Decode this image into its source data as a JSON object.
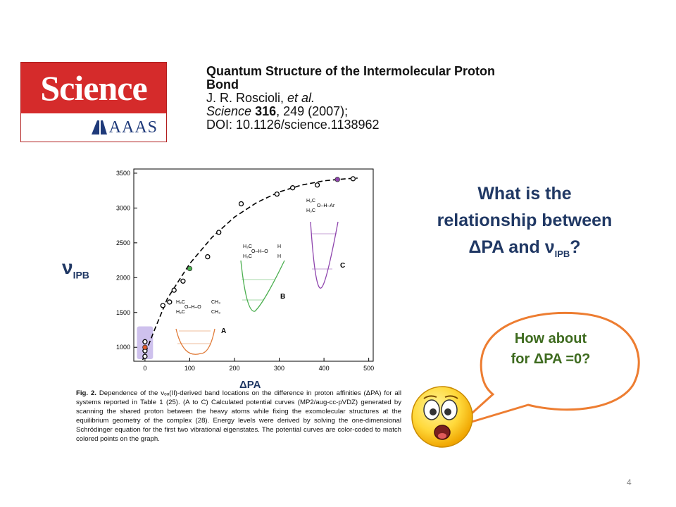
{
  "logo": {
    "wordmark": "Science",
    "publisher": "AAAS"
  },
  "citation": {
    "title": "Quantum Structure of the Intermolecular Proton Bond",
    "authors_prefix": "J. R. Roscioli, ",
    "authors_etal": "et al.",
    "journal": "Science",
    "volume": "316",
    "pages_year": ", 249 (2007);",
    "doi": "DOI: 10.1126/science.1138962"
  },
  "chart_data": {
    "type": "scatter",
    "x_ticks": [
      "0",
      "100",
      "200",
      "300",
      "400",
      "500"
    ],
    "y_ticks": [
      "1000",
      "1500",
      "2000",
      "2500",
      "3000",
      "3500"
    ],
    "xlim": [
      -25,
      510
    ],
    "ylim": [
      800,
      3560
    ],
    "points_open": [
      [
        0,
        950
      ],
      [
        0,
        870
      ],
      [
        0,
        1080
      ],
      [
        40,
        1600
      ],
      [
        55,
        1650
      ],
      [
        65,
        1820
      ],
      [
        85,
        1950
      ],
      [
        140,
        2300
      ],
      [
        165,
        2650
      ],
      [
        215,
        3060
      ],
      [
        295,
        3200
      ],
      [
        330,
        3290
      ],
      [
        385,
        3330
      ],
      [
        465,
        3420
      ]
    ],
    "points_colored": [
      {
        "x": 0,
        "y": 1000,
        "color": "#e05a2a"
      },
      {
        "x": 100,
        "y": 2130,
        "color": "#4caf50"
      },
      {
        "x": 430,
        "y": 3410,
        "color": "#8e44ad"
      }
    ],
    "fit_curve": [
      [
        -5,
        820
      ],
      [
        20,
        1230
      ],
      [
        50,
        1700
      ],
      [
        100,
        2200
      ],
      [
        150,
        2580
      ],
      [
        200,
        2870
      ],
      [
        250,
        3080
      ],
      [
        300,
        3230
      ],
      [
        350,
        3330
      ],
      [
        400,
        3390
      ],
      [
        450,
        3420
      ],
      [
        475,
        3430
      ]
    ],
    "panels": [
      "A",
      "B",
      "C"
    ],
    "highlight_color": "#b9a6e6"
  },
  "molecules": {
    "a": {
      "l1": "H₃C",
      "l2": "O–H–O",
      "l3": "CH₃",
      "l4": "H₃C",
      "l5": "CH₃"
    },
    "b": {
      "l1": "H₃C",
      "l2": "O–H–O",
      "l3": "H",
      "l4": "H₃C",
      "l5": "H"
    },
    "c": {
      "l1": "H₃C",
      "l2": "O–H–Ar",
      "l3": "H₃C"
    }
  },
  "caption": {
    "fig": "Fig. 2.",
    "text": " Dependence of the νₒₔ(II)-derived band locations on the difference in proton affinities (ΔPA) for all systems reported in Table 1 (25). (A to C) Calculated potential curves (MP2/aug-cc-pVDZ) generated by scanning the shared proton between the heavy atoms while fixing the exomolecular structures at the equilibrium geometry of the complex (28). Energy levels were derived by solving the one-dimensional Schrödinger equation for the first two vibrational eigenstates. The potential curves are color-coded to match colored points on the graph."
  },
  "labels": {
    "nu": "ν",
    "nu_sub": "IPB",
    "dpa": "ΔPA"
  },
  "question": {
    "line1": "What is the",
    "line2": "relationship between",
    "line3_pre": "ΔPA and ν",
    "line3_sub": "IPB",
    "line3_post": "?"
  },
  "bubble": {
    "line1": "How about",
    "line2": "for ΔPA =0?"
  },
  "colors": {
    "accent": "#203864",
    "bubble_border": "#ed7d31",
    "bubble_text": "#3e6b1f"
  },
  "page_number": "4"
}
